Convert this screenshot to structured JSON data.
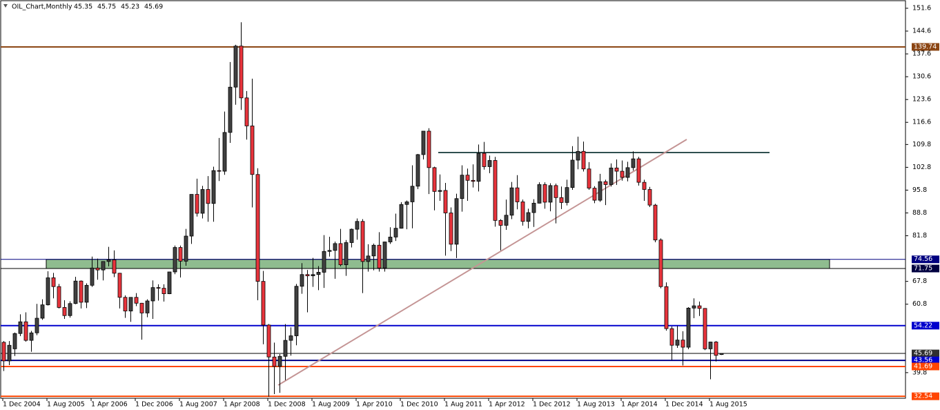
{
  "chart_data": {
    "type": "candlestick",
    "title": "OIL_Chart,Monthly",
    "ohlc": [
      45.35,
      45.75,
      45.23,
      45.69
    ],
    "categories": [
      "1 Dec 2004",
      null,
      null,
      null,
      null,
      null,
      null,
      null,
      "1 Aug 2005",
      null,
      null,
      null,
      null,
      null,
      null,
      null,
      "1 Apr 2006",
      null,
      null,
      null,
      null,
      null,
      null,
      null,
      "1 Dec 2006",
      null,
      null,
      null,
      null,
      null,
      null,
      null,
      "1 Aug 2007",
      null,
      null,
      null,
      null,
      null,
      null,
      null,
      "1 Apr 2008",
      null,
      null,
      null,
      null,
      null,
      null,
      null,
      "1 Dec 2008",
      null,
      null,
      null,
      null,
      null,
      null,
      null,
      "1 Aug 2009",
      null,
      null,
      null,
      null,
      null,
      null,
      null,
      "1 Apr 2010",
      null,
      null,
      null,
      null,
      null,
      null,
      null,
      "1 Dec 2010",
      null,
      null,
      null,
      null,
      null,
      null,
      null,
      "1 Aug 2011",
      null,
      null,
      null,
      null,
      null,
      null,
      null,
      "1 Apr 2012",
      null,
      null,
      null,
      null,
      null,
      null,
      null,
      "1 Dec 2012",
      null,
      null,
      null,
      null,
      null,
      null,
      null,
      "1 Aug 2013",
      null,
      null,
      null,
      null,
      null,
      null,
      null,
      "1 Apr 2014",
      null,
      null,
      null,
      null,
      null,
      null,
      null,
      "1 Dec 2014",
      null,
      null,
      null,
      null,
      null,
      null,
      null,
      "1 Aug 2015",
      null,
      null
    ],
    "open": [
      49.1,
      43.4,
      47.1,
      51.8,
      55.4,
      49.7,
      52.0,
      56.5,
      60.6,
      68.9,
      66.2,
      59.8,
      57.3,
      61.0,
      67.9,
      61.4,
      66.6,
      71.9,
      71.3,
      73.9,
      74.4,
      70.3,
      62.9,
      58.7,
      62.9,
      61.1,
      58.1,
      61.8,
      65.9,
      65.7,
      64.0,
      70.7,
      78.2,
      74.0,
      81.7,
      94.5,
      88.7,
      96.0,
      91.7,
      101.8,
      101.6,
      113.5,
      127.4,
      140.0,
      124.1,
      115.5,
      100.6,
      67.8,
      54.4,
      44.6,
      41.7,
      44.8,
      49.7,
      51.1,
      66.3,
      69.9,
      69.5,
      69.9,
      70.6,
      77.0,
      77.3,
      79.4,
      72.9,
      79.7,
      83.8,
      86.2,
      73.9,
      75.6,
      78.9,
      71.9,
      79.9,
      81.4,
      84.1,
      91.4,
      92.2,
      97.0,
      106.7,
      113.9,
      102.7,
      95.4,
      95.7,
      88.8,
      79.2,
      93.2,
      100.4,
      98.8,
      98.5,
      107.1,
      103.0,
      104.9,
      86.5,
      85.0,
      88.1,
      96.5,
      92.2,
      86.2,
      88.9,
      91.8,
      97.5,
      92.1,
      97.2,
      93.5,
      92.0,
      96.6,
      105.0,
      107.7,
      102.3,
      96.4,
      92.7,
      98.4,
      97.5,
      102.6,
      101.6,
      99.7,
      102.7,
      105.4,
      98.2,
      96.0,
      91.2,
      80.5,
      66.2,
      53.3,
      48.2,
      49.8,
      47.6,
      59.6,
      60.3,
      59.5,
      47.1,
      49.2,
      45.35
    ],
    "high": [
      49.5,
      49.5,
      52.1,
      57.7,
      58.3,
      52.6,
      60.9,
      62.3,
      70.9,
      70.4,
      67.0,
      62.0,
      61.7,
      69.2,
      68.1,
      67.2,
      75.4,
      74.8,
      73.9,
      78.4,
      77.3,
      70.4,
      63.5,
      62.4,
      64.2,
      61.2,
      62.3,
      68.1,
      66.9,
      66.9,
      70.7,
      78.8,
      78.8,
      83.9,
      94.5,
      99.3,
      97.1,
      100.1,
      103.0,
      111.8,
      119.9,
      135.1,
      140.4,
      147.3,
      126.2,
      130.0,
      102.5,
      71.0,
      54.7,
      49.0,
      45.5,
      54.7,
      53.7,
      67.0,
      73.4,
      71.3,
      75.0,
      72.5,
      82.0,
      81.5,
      80.0,
      83.9,
      80.5,
      84.0,
      87.1,
      86.9,
      79.2,
      79.4,
      82.9,
      80.0,
      84.4,
      88.6,
      92.1,
      92.6,
      103.4,
      106.9,
      113.9,
      114.8,
      103.0,
      100.6,
      98.0,
      90.5,
      94.7,
      103.4,
      102.4,
      103.7,
      109.8,
      110.6,
      106.4,
      106.0,
      86.9,
      92.9,
      98.3,
      100.4,
      92.9,
      90.1,
      93.0,
      98.2,
      98.2,
      97.9,
      97.8,
      96.9,
      99.0,
      109.3,
      112.2,
      110.7,
      104.4,
      97.0,
      100.8,
      99.0,
      104.0,
      105.2,
      104.9,
      104.5,
      107.7,
      106.0,
      99.0,
      96.8,
      91.6,
      81.0,
      67.5,
      54.0,
      54.2,
      52.5,
      59.9,
      62.6,
      61.6,
      59.6,
      49.3,
      49.5,
      45.75
    ],
    "low": [
      40.3,
      42.1,
      44.9,
      51.0,
      49.3,
      46.2,
      51.3,
      56.0,
      60.4,
      62.6,
      59.5,
      56.3,
      56.7,
      60.8,
      59.5,
      59.6,
      66.1,
      68.3,
      68.1,
      72.4,
      69.1,
      59.5,
      56.6,
      55.4,
      60.2,
      49.9,
      56.8,
      56.3,
      61.9,
      61.6,
      63.9,
      70.0,
      69.0,
      72.6,
      79.3,
      87.7,
      87.1,
      86.1,
      86.1,
      98.6,
      100.5,
      110.3,
      122.0,
      120.4,
      111.3,
      90.5,
      62.0,
      48.5,
      32.4,
      33.2,
      33.6,
      37.5,
      45.0,
      48.2,
      64.0,
      58.3,
      66.1,
      65.1,
      65.8,
      75.4,
      68.6,
      72.4,
      69.5,
      78.2,
      80.6,
      64.2,
      70.8,
      71.2,
      70.8,
      70.8,
      79.3,
      80.2,
      84.0,
      83.8,
      84.1,
      96.1,
      105.2,
      94.6,
      89.6,
      92.5,
      75.7,
      77.1,
      74.95,
      89.2,
      92.5,
      96.6,
      95.4,
      102.1,
      101.0,
      84.6,
      77.3,
      83.6,
      86.9,
      89.9,
      84.9,
      84.1,
      84.5,
      91.7,
      90.1,
      89.3,
      85.6,
      90.0,
      91.1,
      95.9,
      102.2,
      101.5,
      95.9,
      91.8,
      92.2,
      91.2,
      96.9,
      97.4,
      98.7,
      98.5,
      101.8,
      97.2,
      92.5,
      90.6,
      79.8,
      65.7,
      52.7,
      43.6,
      47.4,
      42.0,
      47.0,
      56.5,
      57.2,
      46.7,
      37.75,
      43.2,
      45.23
    ],
    "close": [
      43.4,
      48.2,
      51.8,
      55.4,
      49.7,
      52.0,
      56.5,
      60.6,
      68.9,
      66.2,
      59.8,
      57.3,
      61.0,
      67.9,
      61.4,
      66.6,
      71.9,
      71.3,
      73.9,
      74.4,
      70.3,
      62.9,
      58.7,
      62.9,
      61.1,
      58.1,
      61.8,
      65.9,
      65.7,
      64.0,
      70.7,
      78.2,
      74.0,
      81.7,
      94.5,
      88.7,
      96.0,
      91.7,
      101.8,
      101.6,
      113.5,
      127.4,
      140.0,
      124.1,
      115.5,
      100.6,
      67.8,
      54.4,
      44.6,
      41.7,
      44.8,
      49.7,
      51.1,
      66.3,
      69.9,
      69.5,
      69.9,
      70.6,
      77.0,
      77.3,
      79.4,
      72.9,
      79.7,
      83.8,
      86.2,
      73.9,
      75.6,
      78.9,
      71.9,
      79.9,
      81.4,
      84.1,
      91.4,
      92.2,
      97.0,
      106.7,
      113.9,
      102.7,
      95.4,
      95.7,
      88.8,
      79.2,
      93.2,
      100.4,
      98.8,
      98.5,
      107.1,
      103.0,
      104.9,
      86.5,
      85.0,
      88.1,
      96.5,
      92.2,
      86.2,
      88.9,
      91.8,
      97.5,
      92.1,
      97.2,
      93.5,
      92.0,
      96.6,
      105.0,
      107.7,
      102.3,
      96.4,
      92.7,
      98.4,
      97.5,
      102.6,
      101.6,
      99.7,
      102.7,
      105.4,
      98.2,
      96.0,
      91.2,
      80.5,
      66.2,
      53.3,
      48.2,
      49.8,
      47.6,
      59.6,
      60.3,
      59.5,
      47.1,
      49.2,
      45.1,
      45.69
    ],
    "up_color": "#404040",
    "down_color": "#e8343c",
    "ylim": [
      31.3,
      153.5
    ],
    "yticks": [
      151.6,
      144.6,
      137.6,
      130.6,
      123.6,
      116.6,
      109.8,
      102.8,
      95.8,
      88.8,
      81.8,
      67.8,
      60.8,
      39.8
    ],
    "levels": [
      {
        "value": 139.74,
        "color": "#8b4513",
        "label_color": "#8b4513",
        "width": 2
      },
      {
        "value": 74.56,
        "color": "#000080",
        "label_color": "#000080",
        "width": 1,
        "fill_to_next": "#8fbc8f"
      },
      {
        "value": 71.75,
        "color": "#000000",
        "label_color": "#000040",
        "width": 1
      },
      {
        "value": 54.22,
        "color": "#0000cd",
        "label_color": "#0000cd",
        "width": 2
      },
      {
        "value": 45.69,
        "color": "#000000",
        "label_color": "#303030",
        "width": 1
      },
      {
        "value": 43.56,
        "color": "#00008b",
        "label_color": "#0000cd",
        "width": 2
      },
      {
        "value": 41.69,
        "color": "#ff4500",
        "label_color": "#ff4500",
        "width": 2
      },
      {
        "value": 32.54,
        "color": "#ff4500",
        "label_color": "#ff4500",
        "width": 2
      }
    ]
  }
}
